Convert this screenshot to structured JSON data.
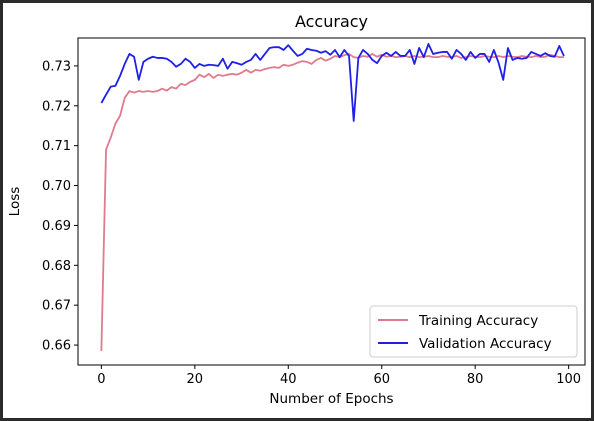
{
  "chart_data": {
    "type": "line",
    "title": "Accuracy",
    "xlabel": "Number of Epochs",
    "ylabel": "Loss",
    "xlim": [
      -5,
      103.5
    ],
    "ylim": [
      0.655,
      0.737
    ],
    "xticks": [
      0,
      20,
      40,
      60,
      80,
      100
    ],
    "yticks": [
      0.66,
      0.67,
      0.68,
      0.69,
      0.7,
      0.71,
      0.72,
      0.73
    ],
    "ytick_labels": [
      "0.66",
      "0.67",
      "0.68",
      "0.69",
      "0.70",
      "0.71",
      "0.72",
      "0.73"
    ],
    "grid": false,
    "legend_position": "lower right",
    "series": [
      {
        "name": "Training Accuracy",
        "color": "#e07b8e",
        "x": [
          0,
          1,
          2,
          3,
          4,
          5,
          6,
          7,
          8,
          9,
          10,
          11,
          12,
          13,
          14,
          15,
          16,
          17,
          18,
          19,
          20,
          21,
          22,
          23,
          24,
          25,
          26,
          27,
          28,
          29,
          30,
          31,
          32,
          33,
          34,
          35,
          36,
          37,
          38,
          39,
          40,
          41,
          42,
          43,
          44,
          45,
          46,
          47,
          48,
          49,
          50,
          51,
          52,
          53,
          54,
          55,
          56,
          57,
          58,
          59,
          60,
          61,
          62,
          63,
          64,
          65,
          66,
          67,
          68,
          69,
          70,
          71,
          72,
          73,
          74,
          75,
          76,
          77,
          78,
          79,
          80,
          81,
          82,
          83,
          84,
          85,
          86,
          87,
          88,
          89,
          90,
          91,
          92,
          93,
          94,
          95,
          96,
          97,
          98,
          99
        ],
        "values": [
          0.6585,
          0.709,
          0.712,
          0.7155,
          0.7175,
          0.722,
          0.7237,
          0.7233,
          0.7237,
          0.7235,
          0.7237,
          0.7235,
          0.7237,
          0.7243,
          0.7238,
          0.7247,
          0.7243,
          0.7255,
          0.7252,
          0.726,
          0.7265,
          0.7278,
          0.7272,
          0.728,
          0.727,
          0.7278,
          0.7275,
          0.7278,
          0.728,
          0.7278,
          0.7283,
          0.729,
          0.7283,
          0.729,
          0.7288,
          0.7292,
          0.7295,
          0.7297,
          0.7295,
          0.7303,
          0.73,
          0.7303,
          0.7308,
          0.7312,
          0.731,
          0.7305,
          0.7315,
          0.732,
          0.7313,
          0.7318,
          0.7325,
          0.7322,
          0.7327,
          0.733,
          0.7322,
          0.732,
          0.7325,
          0.7323,
          0.733,
          0.7323,
          0.7328,
          0.7323,
          0.7325,
          0.7322,
          0.7323,
          0.7325,
          0.7322,
          0.7325,
          0.7322,
          0.7323,
          0.7325,
          0.7322,
          0.7322,
          0.7325,
          0.7323,
          0.7322,
          0.7325,
          0.732,
          0.7322,
          0.7325,
          0.7323,
          0.7322,
          0.7325,
          0.7323,
          0.7322,
          0.7325,
          0.7322,
          0.7325,
          0.7323,
          0.7322,
          0.7325,
          0.7323,
          0.7322,
          0.7325,
          0.7322,
          0.7323,
          0.7328,
          0.7325,
          0.7322,
          0.7322
        ]
      },
      {
        "name": "Validation Accuracy",
        "color": "#1f1fe8",
        "x": [
          0,
          1,
          2,
          3,
          4,
          5,
          6,
          7,
          8,
          9,
          10,
          11,
          12,
          13,
          14,
          15,
          16,
          17,
          18,
          19,
          20,
          21,
          22,
          23,
          24,
          25,
          26,
          27,
          28,
          29,
          30,
          31,
          32,
          33,
          34,
          35,
          36,
          37,
          38,
          39,
          40,
          41,
          42,
          43,
          44,
          45,
          46,
          47,
          48,
          49,
          50,
          51,
          52,
          53,
          54,
          55,
          56,
          57,
          58,
          59,
          60,
          61,
          62,
          63,
          64,
          65,
          66,
          67,
          68,
          69,
          70,
          71,
          72,
          73,
          74,
          75,
          76,
          77,
          78,
          79,
          80,
          81,
          82,
          83,
          84,
          85,
          86,
          87,
          88,
          89,
          90,
          91,
          92,
          93,
          94,
          95,
          96,
          97,
          98,
          99
        ],
        "values": [
          0.7207,
          0.7228,
          0.7248,
          0.725,
          0.7275,
          0.7305,
          0.733,
          0.7323,
          0.7265,
          0.731,
          0.7318,
          0.7323,
          0.732,
          0.732,
          0.7318,
          0.731,
          0.7298,
          0.7305,
          0.7318,
          0.731,
          0.7295,
          0.7305,
          0.73,
          0.7303,
          0.7302,
          0.73,
          0.7318,
          0.7293,
          0.731,
          0.7307,
          0.7303,
          0.731,
          0.7315,
          0.733,
          0.7315,
          0.733,
          0.7345,
          0.7347,
          0.7347,
          0.734,
          0.7352,
          0.7338,
          0.7325,
          0.733,
          0.7343,
          0.734,
          0.7338,
          0.7333,
          0.7337,
          0.7328,
          0.734,
          0.7322,
          0.734,
          0.7325,
          0.7162,
          0.732,
          0.734,
          0.733,
          0.7315,
          0.7307,
          0.7325,
          0.7333,
          0.7325,
          0.7335,
          0.7325,
          0.7325,
          0.734,
          0.7305,
          0.7345,
          0.7322,
          0.7355,
          0.733,
          0.7333,
          0.7335,
          0.7335,
          0.7318,
          0.734,
          0.733,
          0.7315,
          0.7335,
          0.732,
          0.733,
          0.733,
          0.731,
          0.734,
          0.7308,
          0.7265,
          0.7345,
          0.7315,
          0.732,
          0.7318,
          0.732,
          0.7335,
          0.733,
          0.7325,
          0.7332,
          0.7325,
          0.7323,
          0.735,
          0.7325
        ]
      }
    ]
  }
}
